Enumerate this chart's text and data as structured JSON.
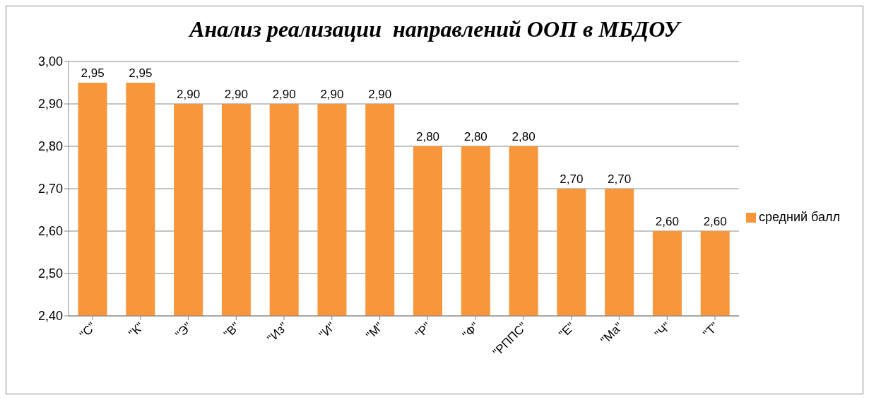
{
  "chart_data": {
    "type": "bar",
    "title": "Анализ реализации  направлений ООП в МБДОУ",
    "categories": [
      "\"С\"",
      "\"К\"",
      "\"Э\"",
      "\"В\"",
      "\"Из\"",
      "\"И\"",
      "\"М\"",
      "\"Р\"",
      "\"Ф\"",
      "\"РППС\"",
      "\"Е\"",
      "\"Ма\"",
      "\"Ч\"",
      "\"Т\""
    ],
    "series": [
      {
        "name": "средний балл",
        "color": "#f7963a",
        "values": [
          2.95,
          2.95,
          2.9,
          2.9,
          2.9,
          2.9,
          2.9,
          2.8,
          2.8,
          2.8,
          2.7,
          2.7,
          2.6,
          2.6
        ],
        "value_labels": [
          "2,95",
          "2,95",
          "2,90",
          "2,90",
          "2,90",
          "2,90",
          "2,90",
          "2,80",
          "2,80",
          "2,80",
          "2,70",
          "2,70",
          "2,60",
          "2,60"
        ]
      }
    ],
    "ylim": [
      2.4,
      3.0
    ],
    "yticks": [
      {
        "value": 2.4,
        "label": "2,40"
      },
      {
        "value": 2.5,
        "label": "2,50"
      },
      {
        "value": 2.6,
        "label": "2,60"
      },
      {
        "value": 2.7,
        "label": "2,70"
      },
      {
        "value": 2.8,
        "label": "2,80"
      },
      {
        "value": 2.9,
        "label": "2,90"
      },
      {
        "value": 3.0,
        "label": "3,00"
      }
    ],
    "grid": "y",
    "legend": "right"
  }
}
